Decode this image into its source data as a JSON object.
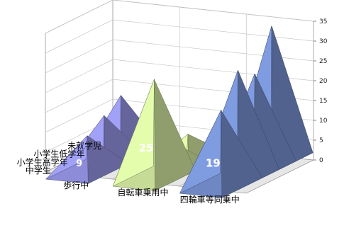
{
  "chart_data": {
    "type": "bar3d-pyramid",
    "ylim": [
      0,
      35
    ],
    "y_ticks": [
      "0",
      "5",
      "10",
      "15",
      "20",
      "25",
      "30",
      "35"
    ],
    "x_categories": [
      "歩行中",
      "自転車乗用中",
      "四輪車等同乗中"
    ],
    "z_categories": [
      "中学生",
      "小学生高学年",
      "小学生低学年",
      "未就学児"
    ],
    "bars": [
      {
        "x": "歩行中",
        "z": "未就学児",
        "value": 2,
        "label": "2"
      },
      {
        "x": "歩行中",
        "z": "小学生低学年",
        "value": 15,
        "label": "15"
      },
      {
        "x": "歩行中",
        "z": "小学生高学年",
        "value": 12,
        "label": "12"
      },
      {
        "x": "歩行中",
        "z": "中学生",
        "value": 9,
        "label": "9"
      },
      {
        "x": "自転車乗用中",
        "z": "未就学児",
        "value": 2,
        "label": "2"
      },
      {
        "x": "自転車乗用中",
        "z": "小学生低学年",
        "value": 7,
        "label": "7"
      },
      {
        "x": "自転車乗用中",
        "z": "小学生高学年",
        "value": 7,
        "label": "7"
      },
      {
        "x": "自転車乗用中",
        "z": "中学生",
        "value": 25,
        "label": "25"
      },
      {
        "x": "四輪車等同乗中",
        "z": "未就学児",
        "value": 34,
        "label": "34"
      },
      {
        "x": "四輪車等同乗中",
        "z": "小学生低学年",
        "value": 24,
        "label": "24"
      },
      {
        "x": "四輪車等同乗中",
        "z": "小学生高学年",
        "value": 27,
        "label": "27"
      },
      {
        "x": "四輪車等同乗中",
        "z": "中学生",
        "value": 19,
        "label": "19"
      }
    ],
    "colors": {
      "歩行中": "#8c8cd8",
      "自転車乗用中": "#c6dc96",
      "四輪車等同乗中": "#6f88c4"
    },
    "grid": true
  }
}
